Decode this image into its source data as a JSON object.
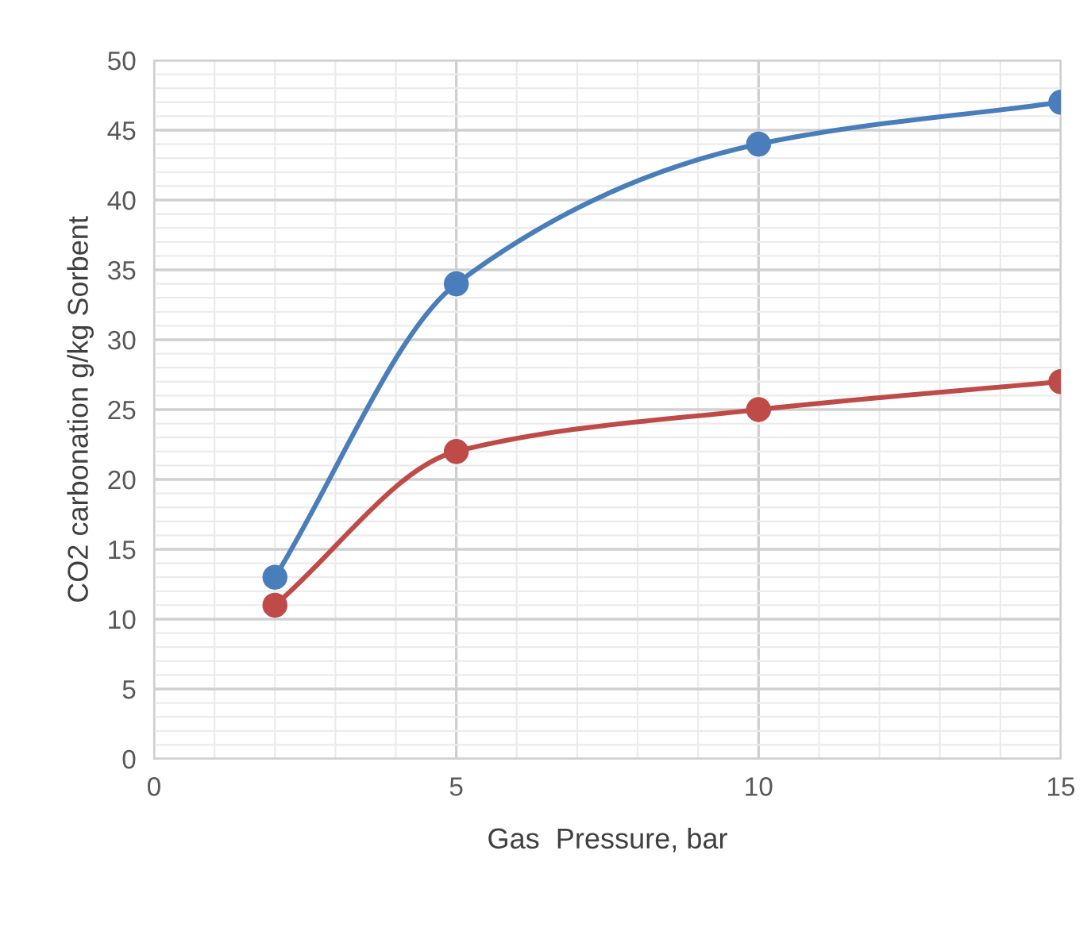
{
  "chart_data": {
    "type": "line",
    "xlabel": "Gas  Pressure, bar",
    "ylabel": "CO2 carbonation g/kg Sorbent",
    "x": [
      2,
      5,
      10,
      15
    ],
    "series": [
      {
        "color": "#4a7ebb",
        "values": [
          13,
          34,
          44,
          47
        ]
      },
      {
        "color": "#be4b48",
        "values": [
          11,
          22,
          25,
          27
        ]
      }
    ],
    "xlim": [
      0,
      15
    ],
    "xticks": [
      0,
      5,
      10,
      15
    ],
    "ylim": [
      0,
      50
    ],
    "yticks": [
      0,
      5,
      10,
      15,
      20,
      25,
      30,
      35,
      40,
      45,
      50
    ],
    "grid": true,
    "marker": "circle",
    "line_style": "solid",
    "legend": false
  }
}
